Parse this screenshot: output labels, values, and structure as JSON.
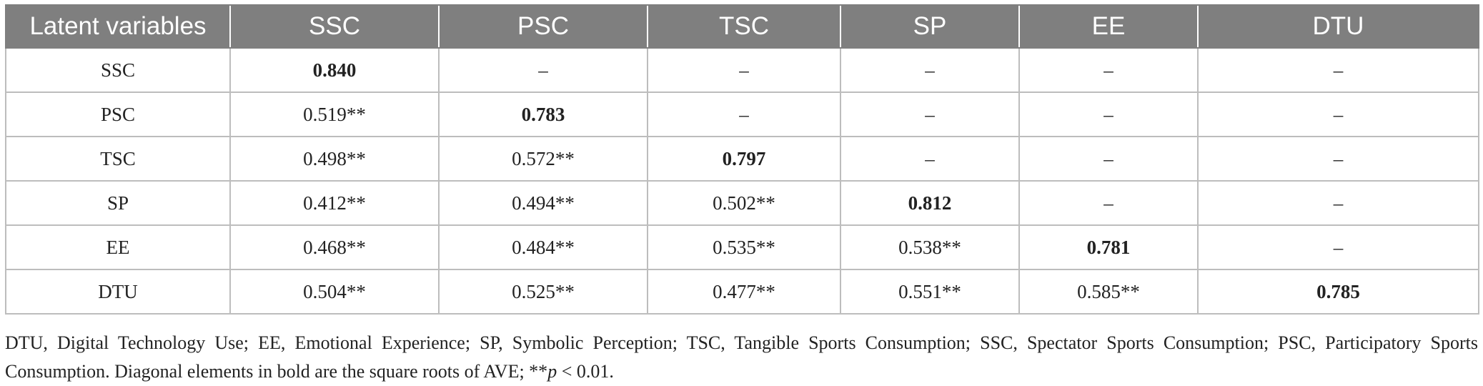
{
  "table": {
    "headers": [
      "Latent variables",
      "SSC",
      "PSC",
      "TSC",
      "SP",
      "EE",
      "DTU"
    ],
    "rows": [
      {
        "label": "SSC",
        "cells": [
          {
            "v": "0.840",
            "b": true
          },
          {
            "v": "–"
          },
          {
            "v": "–"
          },
          {
            "v": "–"
          },
          {
            "v": "–"
          },
          {
            "v": "–"
          }
        ]
      },
      {
        "label": "PSC",
        "cells": [
          {
            "v": "0.519**"
          },
          {
            "v": "0.783",
            "b": true
          },
          {
            "v": "–"
          },
          {
            "v": "–"
          },
          {
            "v": "–"
          },
          {
            "v": "–"
          }
        ]
      },
      {
        "label": "TSC",
        "cells": [
          {
            "v": "0.498**"
          },
          {
            "v": "0.572**"
          },
          {
            "v": "0.797",
            "b": true
          },
          {
            "v": "–"
          },
          {
            "v": "–"
          },
          {
            "v": "–"
          }
        ]
      },
      {
        "label": "SP",
        "cells": [
          {
            "v": "0.412**"
          },
          {
            "v": "0.494**"
          },
          {
            "v": "0.502**"
          },
          {
            "v": "0.812",
            "b": true
          },
          {
            "v": "–"
          },
          {
            "v": "–"
          }
        ]
      },
      {
        "label": "EE",
        "cells": [
          {
            "v": "0.468**"
          },
          {
            "v": "0.484**"
          },
          {
            "v": "0.535**"
          },
          {
            "v": "0.538**"
          },
          {
            "v": "0.781",
            "b": true
          },
          {
            "v": "–"
          }
        ]
      },
      {
        "label": "DTU",
        "cells": [
          {
            "v": "0.504**"
          },
          {
            "v": "0.525**"
          },
          {
            "v": "0.477**"
          },
          {
            "v": "0.551**"
          },
          {
            "v": "0.585**"
          },
          {
            "v": "0.785",
            "b": true
          }
        ]
      }
    ]
  },
  "footnote": {
    "text_main": "DTU, Digital Technology Use; EE, Emotional Experience; SP, Symbolic Perception; TSC, Tangible Sports Consumption; SSC, Spectator Sports Consumption; PSC, Participatory Sports Consumption. Diagonal elements in bold are the square roots of AVE; **",
    "p_symbol": "p",
    "text_end": " < 0.01."
  },
  "colors": {
    "header_bg": "#7f7f7f",
    "header_text": "#ffffff",
    "grid_line": "#bdbdbd",
    "body_text": "#222222"
  }
}
